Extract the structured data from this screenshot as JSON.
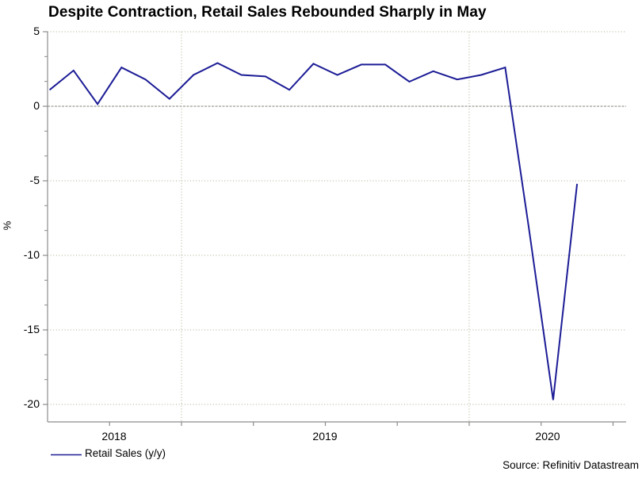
{
  "title": "Despite Contraction, Retail Sales Rebounded Sharply in May",
  "source": "Source: Refinitiv Datastream",
  "legend": {
    "label": "Retail Sales (y/y)"
  },
  "y_axis": {
    "label": "%",
    "tick_labels": [
      "5",
      "0",
      "-5",
      "-10",
      "-15",
      "-20"
    ]
  },
  "x_axis": {
    "tick_labels": [
      "2018",
      "2019",
      "2020"
    ]
  },
  "colors": {
    "line": "#1c1c96",
    "grid_dotted": "#a8ae8e",
    "zero_line": "#85857a",
    "axis": "#8c8c8c",
    "text": "#000000"
  },
  "chart_data": {
    "type": "line",
    "title": "Despite Contraction, Retail Sales Rebounded Sharply in May",
    "xlabel": "",
    "ylabel": "%",
    "ylim": [
      -21.2,
      5
    ],
    "y_major_gridlines": [
      5,
      -5,
      -10,
      -15,
      -20
    ],
    "zero_line": 0,
    "x_year_gridlines": [
      "2019-01",
      "2020-01"
    ],
    "grid": true,
    "legend_position": "bottom-left",
    "x": [
      "2018-07",
      "2018-08",
      "2018-09",
      "2018-10",
      "2018-11",
      "2018-12",
      "2019-01",
      "2019-02",
      "2019-03",
      "2019-04",
      "2019-05",
      "2019-06",
      "2019-07",
      "2019-08",
      "2019-09",
      "2019-10",
      "2019-11",
      "2019-12",
      "2020-01",
      "2020-02",
      "2020-03",
      "2020-04",
      "2020-05"
    ],
    "series": [
      {
        "name": "Retail Sales (y/y)",
        "values": [
          1.1,
          2.4,
          0.15,
          2.6,
          1.8,
          0.5,
          2.1,
          2.9,
          2.1,
          2.0,
          1.1,
          2.85,
          2.1,
          2.8,
          2.8,
          1.65,
          2.35,
          1.8,
          2.1,
          2.6,
          -8.3,
          -19.7,
          -5.2
        ]
      }
    ]
  }
}
